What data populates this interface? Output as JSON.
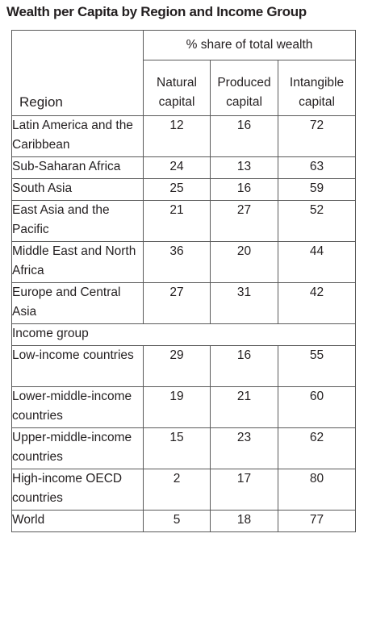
{
  "title": "Wealth per Capita by Region and Income Group",
  "table": {
    "super_header": "% share of total wealth",
    "columns": [
      "Region",
      "Natural capital",
      "Produced capital",
      "Intangible capital"
    ],
    "section_label": "Income group"
  },
  "chart_data": {
    "type": "table",
    "title": "Wealth per Capita by Region and Income Group",
    "super_header": "% share of total wealth",
    "columns": [
      "Region",
      "Natural capital",
      "Produced capital",
      "Intangible capital"
    ],
    "rows": [
      {
        "label": "Latin America and the Caribbean",
        "natural": 12,
        "produced": 16,
        "intangible": 72
      },
      {
        "label": "Sub-Saharan Africa",
        "natural": 24,
        "produced": 13,
        "intangible": 63
      },
      {
        "label": "South Asia",
        "natural": 25,
        "produced": 16,
        "intangible": 59
      },
      {
        "label": "East Asia and the Pacific",
        "natural": 21,
        "produced": 27,
        "intangible": 52
      },
      {
        "label": "Middle East and North Africa",
        "natural": 36,
        "produced": 20,
        "intangible": 44
      },
      {
        "label": "Europe and Central Asia",
        "natural": 27,
        "produced": 31,
        "intangible": 42
      },
      {
        "section": "Income group"
      },
      {
        "label": "Low-income countries",
        "natural": 29,
        "produced": 16,
        "intangible": 55
      },
      {
        "label": "Lower-middle-income countries",
        "natural": 19,
        "produced": 21,
        "intangible": 60
      },
      {
        "label": "Upper-middle-income countries",
        "natural": 15,
        "produced": 23,
        "intangible": 62
      },
      {
        "label": "High-income OECD countries",
        "natural": 2,
        "produced": 17,
        "intangible": 80
      },
      {
        "label": "World",
        "natural": 5,
        "produced": 18,
        "intangible": 77
      }
    ]
  }
}
